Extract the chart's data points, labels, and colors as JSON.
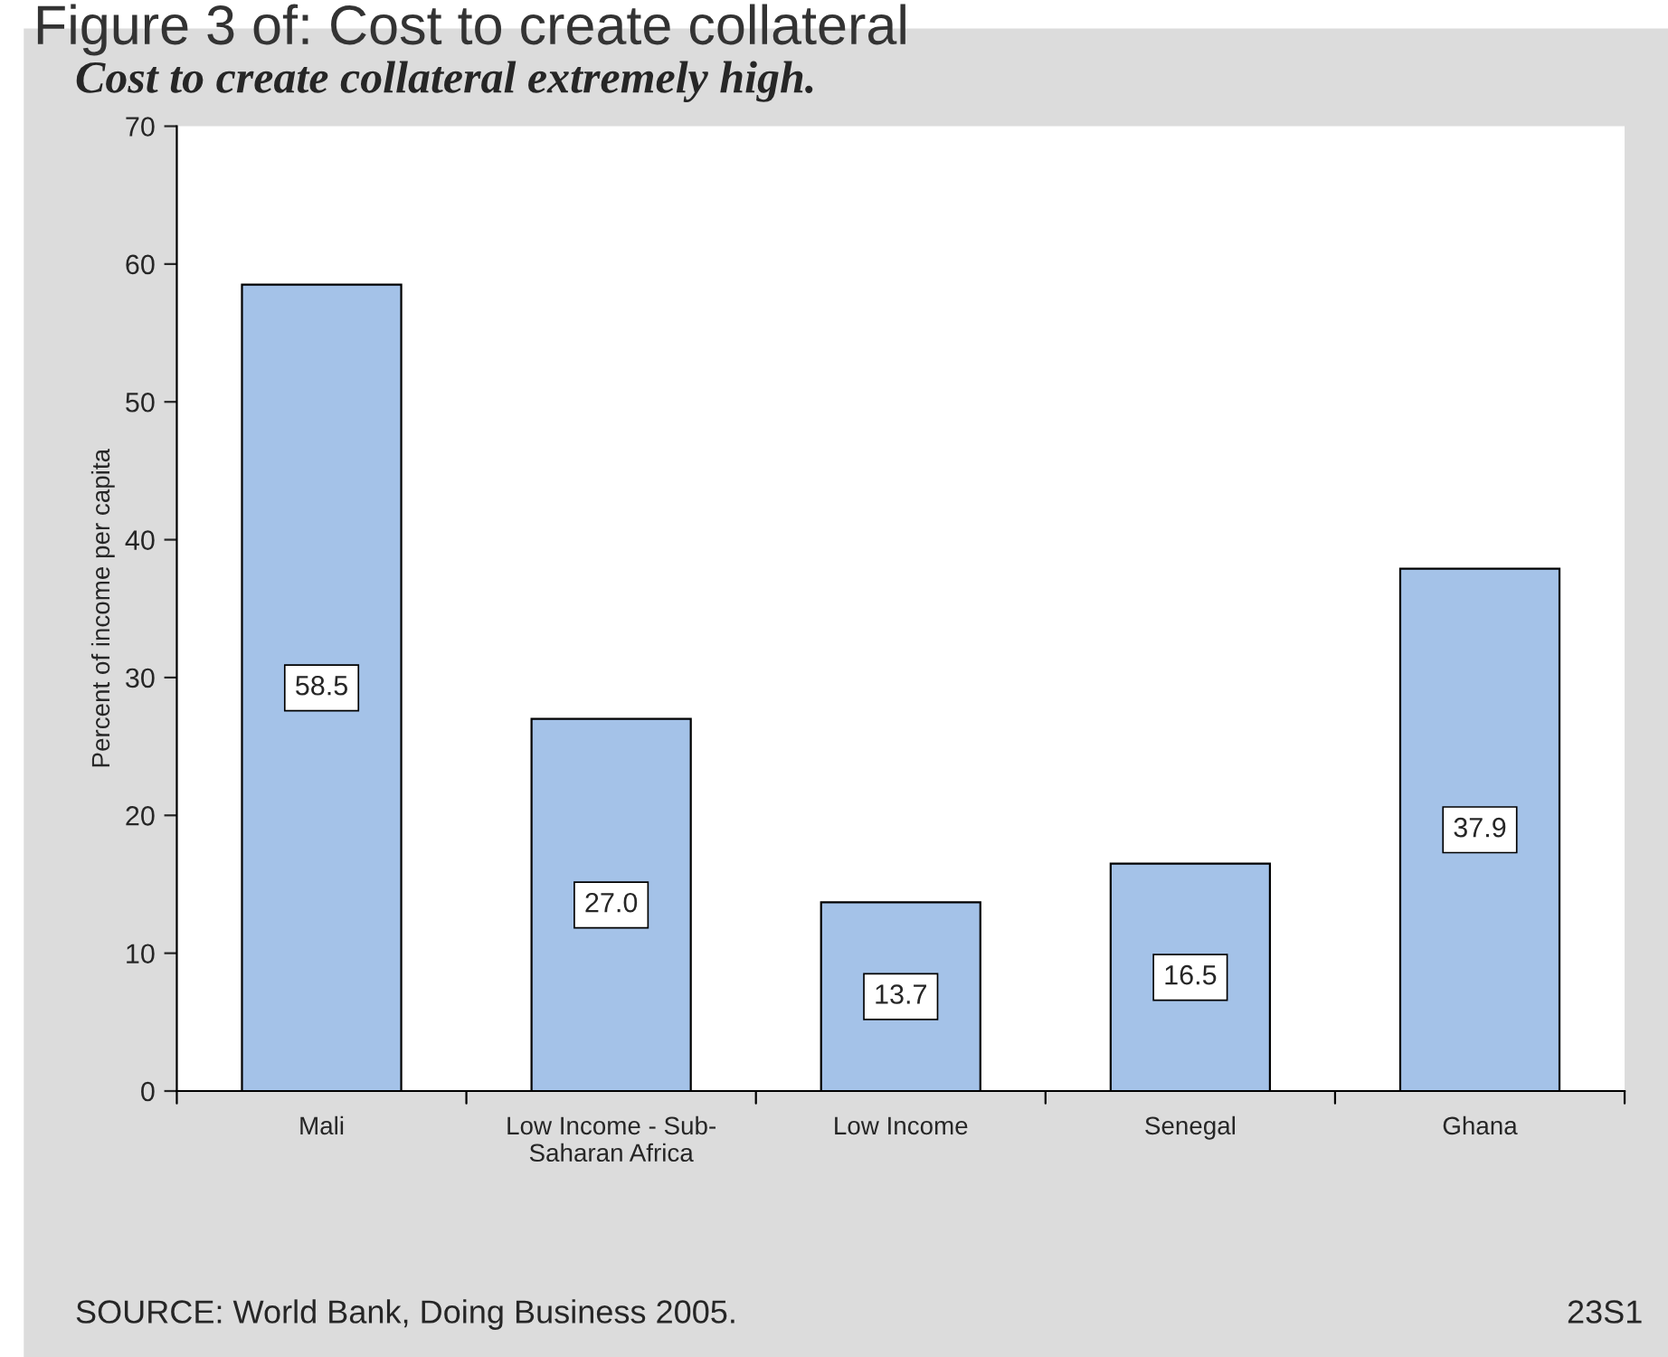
{
  "chart_data": {
    "type": "bar",
    "title": "Figure 3 of: Cost to create collateral",
    "subtitle": "Cost to create collateral extremely high.",
    "ylabel": "Percent of income per capita",
    "categories": [
      "Mali",
      "Low Income - Sub-\nSaharan Africa",
      "Low Income",
      "Senegal",
      "Ghana"
    ],
    "values": [
      58.5,
      27.0,
      13.7,
      16.5,
      37.9
    ],
    "value_labels": [
      "58.5",
      "27.0",
      "13.7",
      "16.5",
      "37.9"
    ],
    "color": "#a4c2e8",
    "ylim": [
      0,
      70
    ],
    "yticks": [
      0,
      10,
      20,
      30,
      40,
      50,
      60,
      70
    ],
    "annotations": [
      "SOURCE: World Bank, Doing Business 2005.",
      "23S1"
    ]
  }
}
